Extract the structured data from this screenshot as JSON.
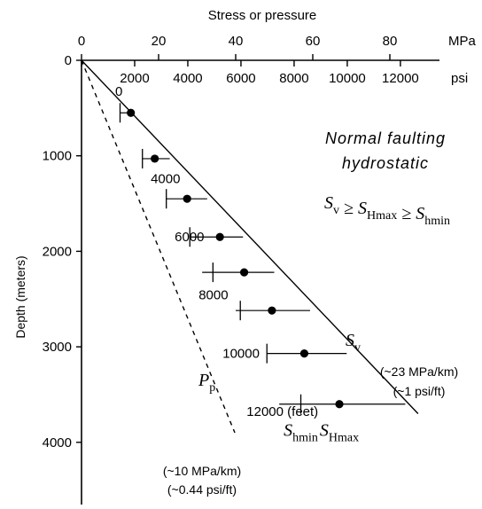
{
  "chart_data": {
    "type": "scatter",
    "title": "Normal faulting",
    "subtitle": "hydrostatic",
    "relation": {
      "parts": [
        {
          "t": "S",
          "sub": "v"
        },
        {
          "t": " ≥ "
        },
        {
          "t": "S",
          "sub": "Hmax"
        },
        {
          "t": " ≥ "
        },
        {
          "t": "S",
          "sub": "hmin"
        }
      ]
    },
    "x_axis": {
      "label": "Stress or pressure",
      "position": "top",
      "mpa_ticks": [
        0,
        20,
        40,
        60,
        80
      ],
      "mpa_unit": "MPa",
      "psi_ticks": [
        0,
        2000,
        4000,
        6000,
        8000,
        10000,
        12000
      ],
      "psi_unit": "psi",
      "range_mpa": [
        0,
        100
      ]
    },
    "y_axis": {
      "label": "Depth (meters)",
      "ticks_m": [
        0,
        1000,
        2000,
        3000,
        4000
      ],
      "feet_labels": [
        {
          "feet": 0,
          "text": "0"
        },
        {
          "feet": 4000,
          "text": "4000"
        },
        {
          "feet": 6000,
          "text": "6000"
        },
        {
          "feet": 8000,
          "text": "8000"
        },
        {
          "feet": 10000,
          "text": "10000"
        },
        {
          "feet": 12000,
          "text": "12000 (feet)"
        }
      ],
      "range_m": [
        0,
        4500
      ],
      "inverted": true
    },
    "lines": [
      {
        "key": "Sv",
        "style": "solid",
        "gradient_mpa_per_km": 23.6,
        "max_depth_m": 3700,
        "label": {
          "t": "S",
          "sub": "v"
        }
      },
      {
        "key": "Pp",
        "style": "dashed",
        "gradient_mpa_per_km": 10.2,
        "max_depth_m": 3900,
        "label": {
          "t": "P",
          "sub": "p"
        }
      }
    ],
    "gradient_notes": {
      "Sv": [
        "(~23 MPa/km)",
        "(~1 psi/ft)"
      ],
      "Pp": [
        "(~10 MPa/km)",
        "(~0.44 psi/ft)"
      ]
    },
    "points": [
      {
        "depth_m": 550,
        "shmin": 10.0,
        "shmax": 12.8,
        "bar_left": 10.0,
        "bar_right": 12.8
      },
      {
        "depth_m": 1030,
        "shmin": 15.8,
        "shmax": 19.0,
        "bar_left": 15.8,
        "bar_right": 22.9
      },
      {
        "depth_m": 1450,
        "shmin": 22.0,
        "shmax": 27.4,
        "bar_left": 21.9,
        "bar_right": 32.6
      },
      {
        "depth_m": 1850,
        "shmin": 28.1,
        "shmax": 35.9,
        "bar_left": 28.1,
        "bar_right": 41.9
      },
      {
        "depth_m": 2220,
        "shmin": 34.1,
        "shmax": 42.2,
        "bar_left": 31.3,
        "bar_right": 50.0
      },
      {
        "depth_m": 2620,
        "shmin": 41.2,
        "shmax": 49.4,
        "bar_left": 40.0,
        "bar_right": 59.3
      },
      {
        "depth_m": 3070,
        "shmin": 48.1,
        "shmax": 57.8,
        "bar_left": 48.1,
        "bar_right": 68.8
      },
      {
        "depth_m": 3600,
        "shmin": 56.9,
        "shmax": 66.9,
        "bar_left": 51.3,
        "bar_right": 84.0
      }
    ],
    "series": [
      {
        "name": "S_hmin",
        "marker": "cross",
        "label": {
          "t": "S",
          "sub": "hmin"
        }
      },
      {
        "name": "S_Hmax",
        "marker": "dot",
        "label": {
          "t": "S",
          "sub": "Hmax"
        }
      }
    ],
    "grid": false,
    "legend": "none"
  }
}
